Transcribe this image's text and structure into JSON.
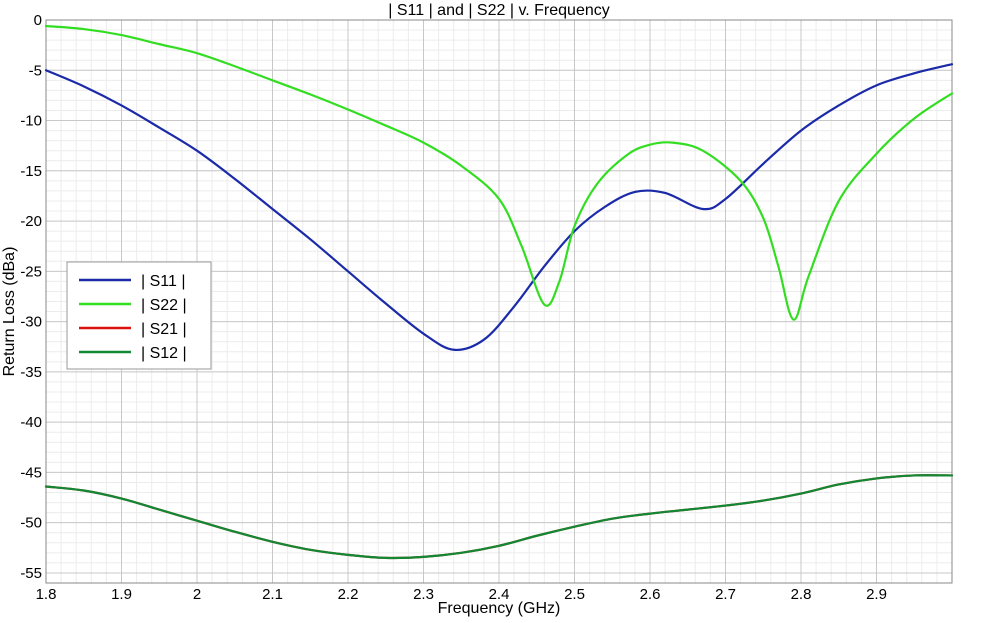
{
  "chart_data": {
    "type": "line",
    "title": "| S11 | and | S22 | v. Frequency",
    "xlabel": "Frequency (GHz)",
    "ylabel": "Return Loss (dBa)",
    "xlim": [
      1.8,
      3.0
    ],
    "ylim": [
      -56,
      0
    ],
    "grid": true,
    "minor_grid": true,
    "legend_position": "left-middle",
    "x_ticks": [
      1.8,
      1.9,
      2.0,
      2.1,
      2.2,
      2.3,
      2.4,
      2.5,
      2.6,
      2.7,
      2.8,
      2.9
    ],
    "x_tick_labels": [
      "1.8",
      "1.9",
      "2",
      "2.1",
      "2.2",
      "2.3",
      "2.4",
      "2.5",
      "2.6",
      "2.7",
      "2.8",
      "2.9"
    ],
    "y_ticks": [
      0,
      -5,
      -10,
      -15,
      -20,
      -25,
      -30,
      -35,
      -40,
      -45,
      -50,
      -55
    ],
    "y_tick_labels": [
      "0",
      "-5",
      "-10",
      "-15",
      "-20",
      "-25",
      "-30",
      "-35",
      "-40",
      "-45",
      "-50",
      "-55"
    ],
    "series": [
      {
        "name": "| S11 |",
        "color": "#1a2aa8",
        "points": [
          [
            1.8,
            -5.0
          ],
          [
            1.85,
            -6.6
          ],
          [
            1.9,
            -8.5
          ],
          [
            1.95,
            -10.7
          ],
          [
            2.0,
            -13.0
          ],
          [
            2.05,
            -15.8
          ],
          [
            2.1,
            -18.8
          ],
          [
            2.15,
            -21.8
          ],
          [
            2.2,
            -25.0
          ],
          [
            2.25,
            -28.2
          ],
          [
            2.3,
            -31.2
          ],
          [
            2.34,
            -32.8
          ],
          [
            2.38,
            -31.8
          ],
          [
            2.42,
            -28.5
          ],
          [
            2.46,
            -24.5
          ],
          [
            2.5,
            -21.0
          ],
          [
            2.54,
            -18.6
          ],
          [
            2.58,
            -17.1
          ],
          [
            2.62,
            -17.2
          ],
          [
            2.67,
            -18.8
          ],
          [
            2.7,
            -17.8
          ],
          [
            2.75,
            -14.3
          ],
          [
            2.8,
            -11.0
          ],
          [
            2.85,
            -8.5
          ],
          [
            2.9,
            -6.5
          ],
          [
            2.95,
            -5.3
          ],
          [
            3.0,
            -4.4
          ]
        ]
      },
      {
        "name": "| S22 |",
        "color": "#33dd22",
        "points": [
          [
            1.8,
            -0.6
          ],
          [
            1.85,
            -0.9
          ],
          [
            1.9,
            -1.5
          ],
          [
            1.95,
            -2.4
          ],
          [
            2.0,
            -3.3
          ],
          [
            2.05,
            -4.6
          ],
          [
            2.1,
            -6.0
          ],
          [
            2.15,
            -7.4
          ],
          [
            2.2,
            -8.9
          ],
          [
            2.25,
            -10.5
          ],
          [
            2.3,
            -12.2
          ],
          [
            2.35,
            -14.5
          ],
          [
            2.4,
            -17.8
          ],
          [
            2.43,
            -22.5
          ],
          [
            2.46,
            -28.3
          ],
          [
            2.48,
            -26.0
          ],
          [
            2.5,
            -20.5
          ],
          [
            2.53,
            -16.3
          ],
          [
            2.57,
            -13.4
          ],
          [
            2.6,
            -12.4
          ],
          [
            2.63,
            -12.2
          ],
          [
            2.67,
            -13.0
          ],
          [
            2.72,
            -16.0
          ],
          [
            2.75,
            -19.7
          ],
          [
            2.77,
            -24.5
          ],
          [
            2.79,
            -29.8
          ],
          [
            2.81,
            -25.5
          ],
          [
            2.85,
            -18.0
          ],
          [
            2.9,
            -13.3
          ],
          [
            2.95,
            -9.8
          ],
          [
            3.0,
            -7.3
          ]
        ]
      },
      {
        "name": "| S21 |",
        "color": "#dd1111",
        "points": [
          [
            1.8,
            -46.4
          ],
          [
            1.85,
            -46.8
          ],
          [
            1.9,
            -47.6
          ],
          [
            1.95,
            -48.7
          ],
          [
            2.0,
            -49.8
          ],
          [
            2.05,
            -50.9
          ],
          [
            2.1,
            -51.9
          ],
          [
            2.15,
            -52.7
          ],
          [
            2.2,
            -53.2
          ],
          [
            2.25,
            -53.5
          ],
          [
            2.3,
            -53.4
          ],
          [
            2.35,
            -53.0
          ],
          [
            2.4,
            -52.3
          ],
          [
            2.45,
            -51.3
          ],
          [
            2.5,
            -50.4
          ],
          [
            2.55,
            -49.6
          ],
          [
            2.6,
            -49.1
          ],
          [
            2.65,
            -48.7
          ],
          [
            2.7,
            -48.3
          ],
          [
            2.75,
            -47.8
          ],
          [
            2.8,
            -47.1
          ],
          [
            2.85,
            -46.2
          ],
          [
            2.9,
            -45.6
          ],
          [
            2.95,
            -45.3
          ],
          [
            3.0,
            -45.3
          ]
        ]
      },
      {
        "name": "| S12 |",
        "color": "#118833",
        "points": [
          [
            1.8,
            -46.4
          ],
          [
            1.85,
            -46.8
          ],
          [
            1.9,
            -47.6
          ],
          [
            1.95,
            -48.7
          ],
          [
            2.0,
            -49.8
          ],
          [
            2.05,
            -50.9
          ],
          [
            2.1,
            -51.9
          ],
          [
            2.15,
            -52.7
          ],
          [
            2.2,
            -53.2
          ],
          [
            2.25,
            -53.5
          ],
          [
            2.3,
            -53.4
          ],
          [
            2.35,
            -53.0
          ],
          [
            2.4,
            -52.3
          ],
          [
            2.45,
            -51.3
          ],
          [
            2.5,
            -50.4
          ],
          [
            2.55,
            -49.6
          ],
          [
            2.6,
            -49.1
          ],
          [
            2.65,
            -48.7
          ],
          [
            2.7,
            -48.3
          ],
          [
            2.75,
            -47.8
          ],
          [
            2.8,
            -47.1
          ],
          [
            2.85,
            -46.2
          ],
          [
            2.9,
            -45.6
          ],
          [
            2.95,
            -45.3
          ],
          [
            3.0,
            -45.3
          ]
        ]
      }
    ]
  }
}
